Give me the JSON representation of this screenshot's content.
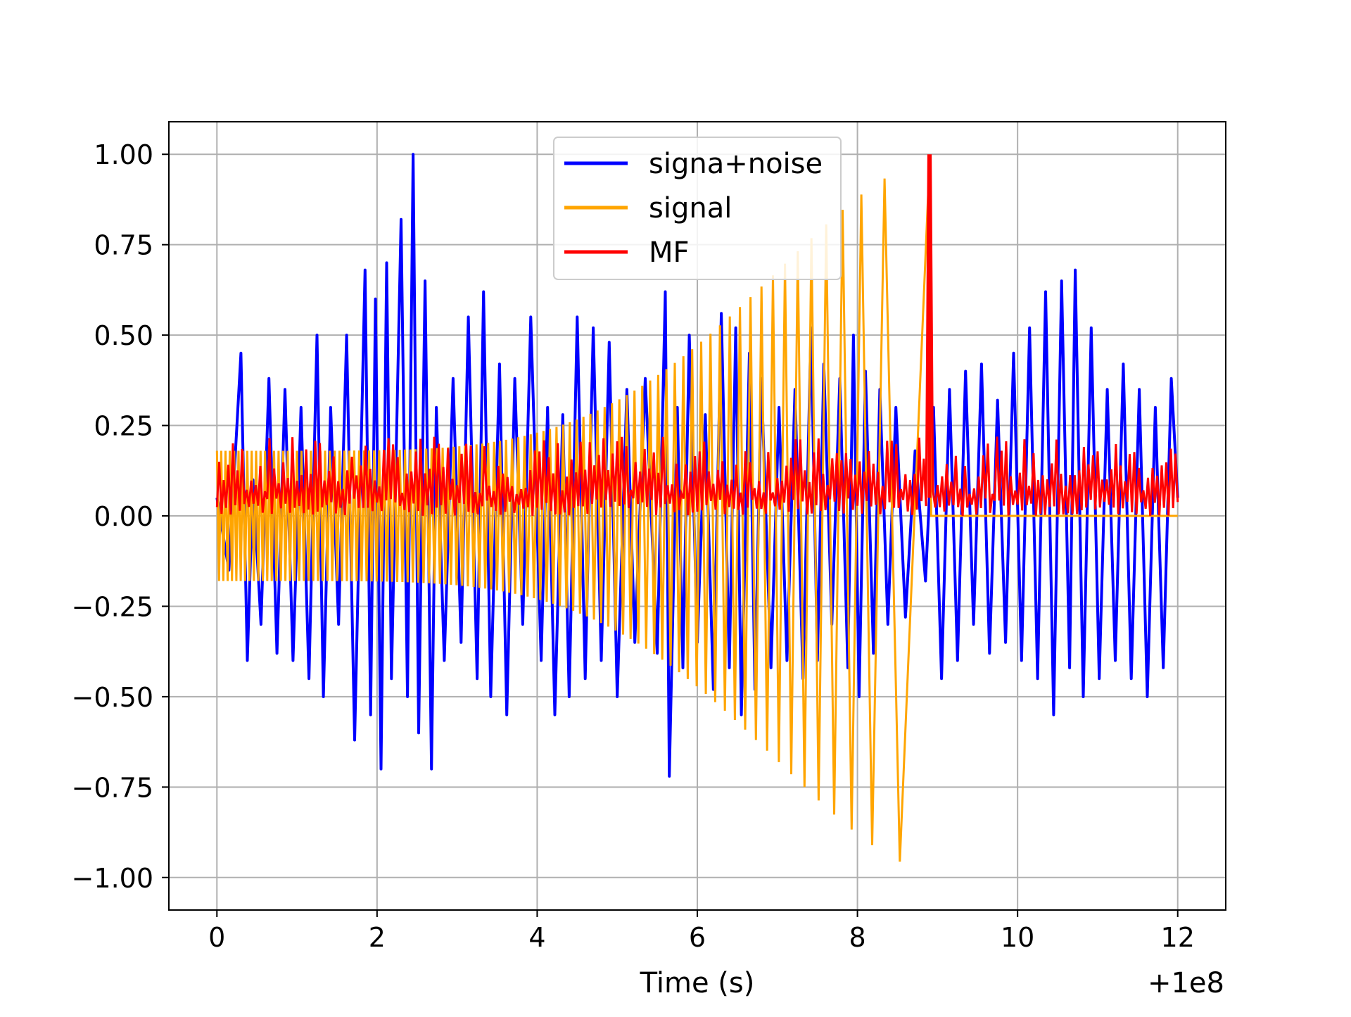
{
  "chart_data": {
    "type": "line",
    "title": "",
    "xlabel": "Time (s)",
    "ylabel": "",
    "x_offset_text": "+1e8",
    "xlim": [
      -0.6,
      12.6
    ],
    "ylim": [
      -1.09,
      1.09
    ],
    "x_ticks": [
      0,
      2,
      4,
      6,
      8,
      10,
      12
    ],
    "x_tick_labels": [
      "0",
      "2",
      "4",
      "6",
      "8",
      "10",
      "12"
    ],
    "y_ticks": [
      1.0,
      0.75,
      0.5,
      0.25,
      0.0,
      -0.25,
      -0.5,
      -0.75,
      -1.0
    ],
    "y_tick_labels": [
      "1.00",
      "0.75",
      "0.50",
      "0.25",
      "0.00",
      "−0.25",
      "−0.50",
      "−0.75",
      "−1.00"
    ],
    "grid": true,
    "legend_position": "top-center",
    "series": [
      {
        "name": "signa+noise",
        "color": "#0000ff",
        "x": [
          0.0,
          0.15,
          0.3,
          0.38,
          0.45,
          0.55,
          0.65,
          0.75,
          0.85,
          0.95,
          1.05,
          1.15,
          1.25,
          1.33,
          1.42,
          1.52,
          1.62,
          1.72,
          1.85,
          1.92,
          1.98,
          2.05,
          2.12,
          2.18,
          2.3,
          2.38,
          2.45,
          2.52,
          2.6,
          2.68,
          2.74,
          2.84,
          2.95,
          3.05,
          3.14,
          3.25,
          3.33,
          3.42,
          3.53,
          3.62,
          3.72,
          3.82,
          3.92,
          4.05,
          4.13,
          4.22,
          4.32,
          4.4,
          4.5,
          4.6,
          4.7,
          4.8,
          4.9,
          5.0,
          5.12,
          5.22,
          5.35,
          5.5,
          5.6,
          5.65,
          5.75,
          5.82,
          5.9,
          6.0,
          6.1,
          6.2,
          6.3,
          6.4,
          6.48,
          6.55,
          6.65,
          6.72,
          6.8,
          6.92,
          7.02,
          7.12,
          7.22,
          7.32,
          7.42,
          7.5,
          7.58,
          7.68,
          7.78,
          7.88,
          7.95,
          8.02,
          8.1,
          8.2,
          8.28,
          8.38,
          8.48,
          8.6,
          8.72,
          8.85,
          8.95,
          9.05,
          9.15,
          9.25,
          9.35,
          9.45,
          9.55,
          9.65,
          9.75,
          9.85,
          9.95,
          10.05,
          10.15,
          10.25,
          10.35,
          10.45,
          10.55,
          10.65,
          10.72,
          10.82,
          10.92,
          11.02,
          11.12,
          11.22,
          11.32,
          11.42,
          11.52,
          11.62,
          11.72,
          11.82,
          11.92,
          12.0
        ],
        "y": [
          0.05,
          -0.15,
          0.45,
          -0.4,
          0.1,
          -0.3,
          0.38,
          -0.38,
          0.35,
          -0.4,
          0.3,
          -0.45,
          0.5,
          -0.5,
          0.3,
          -0.3,
          0.5,
          -0.62,
          0.68,
          -0.55,
          0.6,
          -0.7,
          0.7,
          -0.45,
          0.82,
          -0.5,
          1.0,
          -0.6,
          0.65,
          -0.7,
          0.3,
          -0.4,
          0.38,
          -0.35,
          0.55,
          -0.45,
          0.62,
          -0.5,
          0.42,
          -0.55,
          0.38,
          -0.3,
          0.55,
          -0.4,
          0.3,
          -0.55,
          0.28,
          -0.5,
          0.55,
          -0.45,
          0.52,
          -0.4,
          0.48,
          -0.5,
          0.35,
          -0.35,
          0.38,
          -0.38,
          0.62,
          -0.72,
          0.3,
          -0.42,
          0.5,
          -0.35,
          0.28,
          -0.48,
          0.56,
          -0.42,
          0.52,
          -0.55,
          0.45,
          -0.48,
          0.38,
          -0.42,
          0.3,
          -0.4,
          0.35,
          -0.45,
          0.52,
          -0.4,
          0.42,
          -0.3,
          0.38,
          -0.42,
          0.5,
          -0.5,
          0.4,
          -0.38,
          0.35,
          -0.3,
          0.3,
          -0.28,
          0.18,
          -0.18,
          0.3,
          -0.45,
          0.35,
          -0.4,
          0.4,
          -0.3,
          0.42,
          -0.38,
          0.32,
          -0.35,
          0.45,
          -0.4,
          0.52,
          -0.45,
          0.62,
          -0.55,
          0.65,
          -0.42,
          0.68,
          -0.5,
          0.52,
          -0.45,
          0.35,
          -0.4,
          0.42,
          -0.45,
          0.35,
          -0.5,
          0.3,
          -0.42,
          0.38,
          0.05
        ]
      },
      {
        "name": "signal",
        "color": "#ffa500",
        "cycles": 200,
        "x_start": 0.0,
        "x_merger": 8.9,
        "x_end": 12.0,
        "amplitude_start": 0.18,
        "amplitude_peak": 0.98
      },
      {
        "name": "MF",
        "color": "#ff0000",
        "peak_x": 8.9,
        "peak_y": 1.0,
        "baseline_min": 0.0,
        "baseline_max": 0.26,
        "x_start": 0.0,
        "x_end": 12.0
      }
    ]
  }
}
